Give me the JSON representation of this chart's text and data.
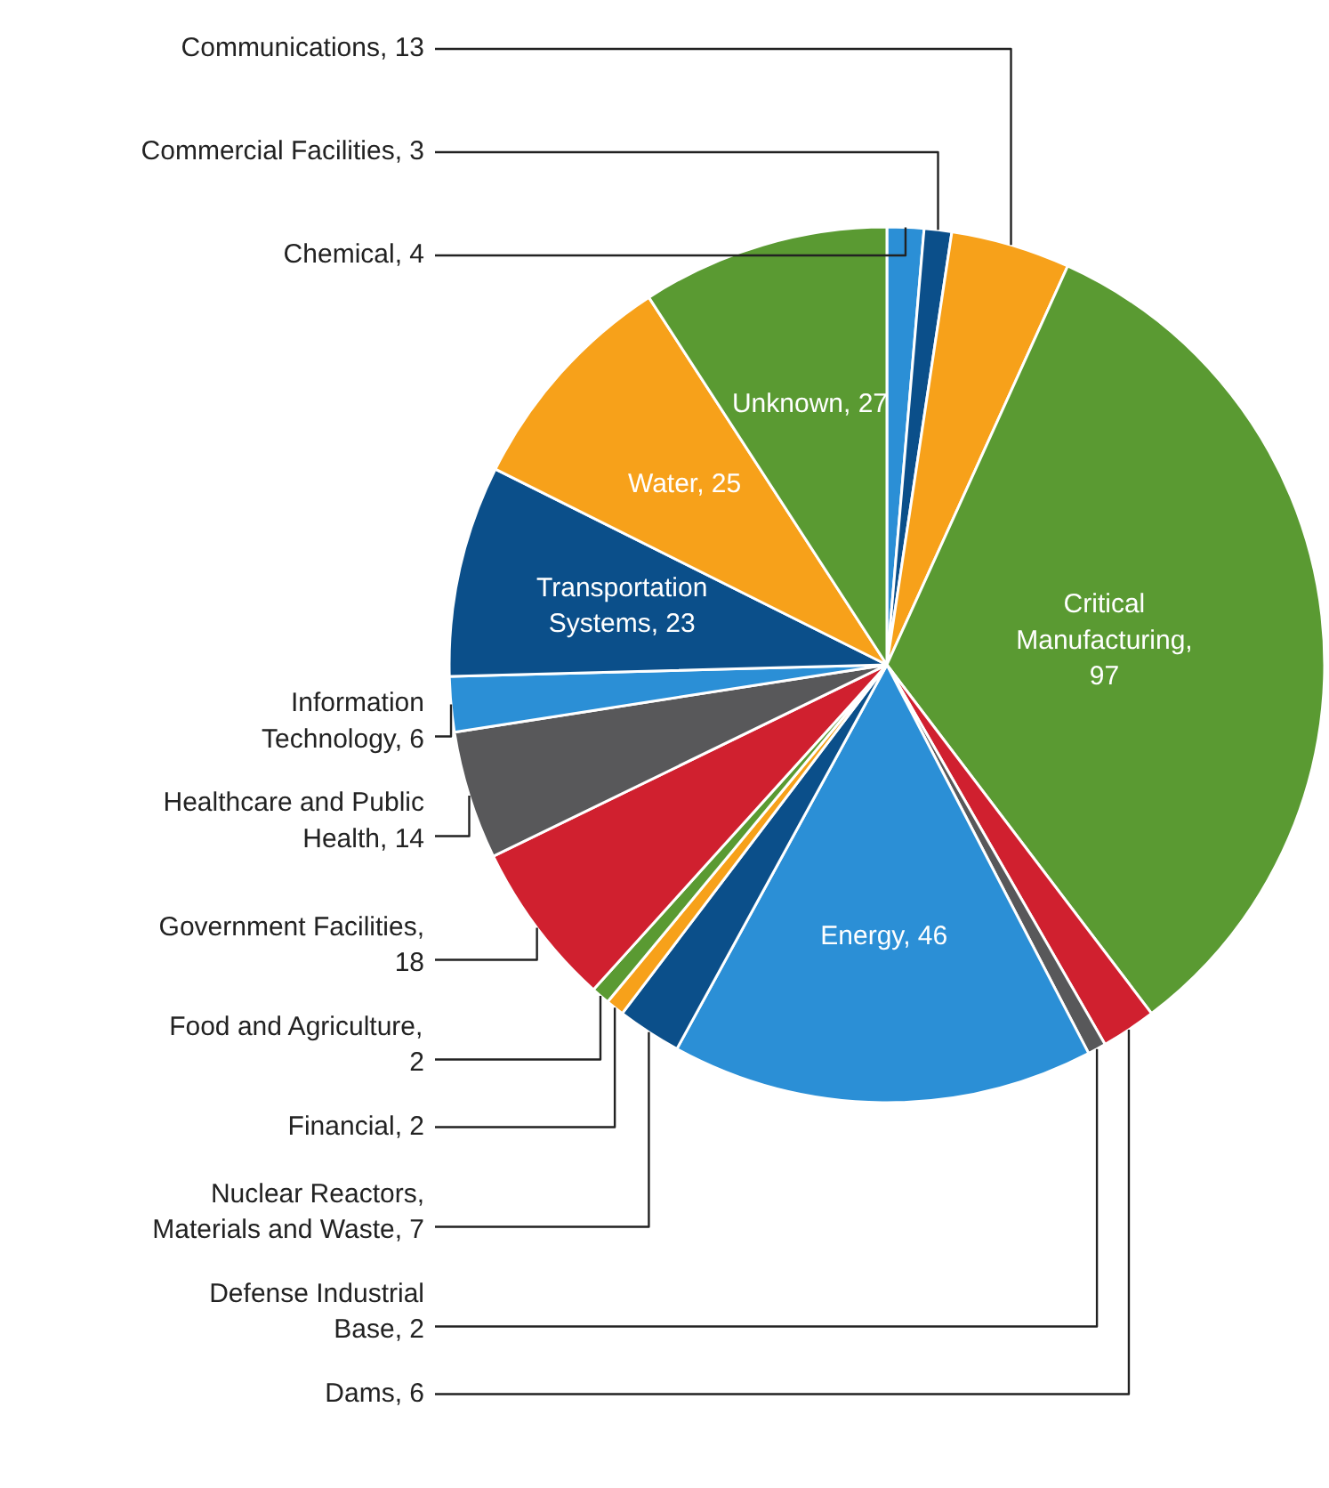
{
  "chart_data": {
    "type": "pie",
    "categories": [
      "Chemical, 4",
      "Commercial Facilities, 3",
      "Communications, 13",
      "Critical Manufacturing, 97",
      "Dams, 6",
      "Defense Industrial Base, 2",
      "Energy, 46",
      "Nuclear Reactors, Materials and Waste, 7",
      "Financial, 2",
      "Food and Agriculture, 2",
      "Government Facilities, 18",
      "Healthcare and Public Health, 14",
      "Information Technology, 6",
      "Transportation Systems, 23",
      "Water, 25",
      "Unknown, 27"
    ],
    "values": [
      4,
      3,
      13,
      97,
      6,
      2,
      46,
      7,
      2,
      2,
      18,
      14,
      6,
      23,
      25,
      27
    ],
    "colors": [
      "#2b8fd6",
      "#0b4f8a",
      "#f7a11a",
      "#5a9a32",
      "#d0202f",
      "#58585a",
      "#2b8fd6",
      "#0b4f8a",
      "#f7a11a",
      "#5a9a32",
      "#d0202f",
      "#58585a",
      "#2b8fd6",
      "#0b4f8a",
      "#f7a11a",
      "#5a9a32"
    ]
  }
}
